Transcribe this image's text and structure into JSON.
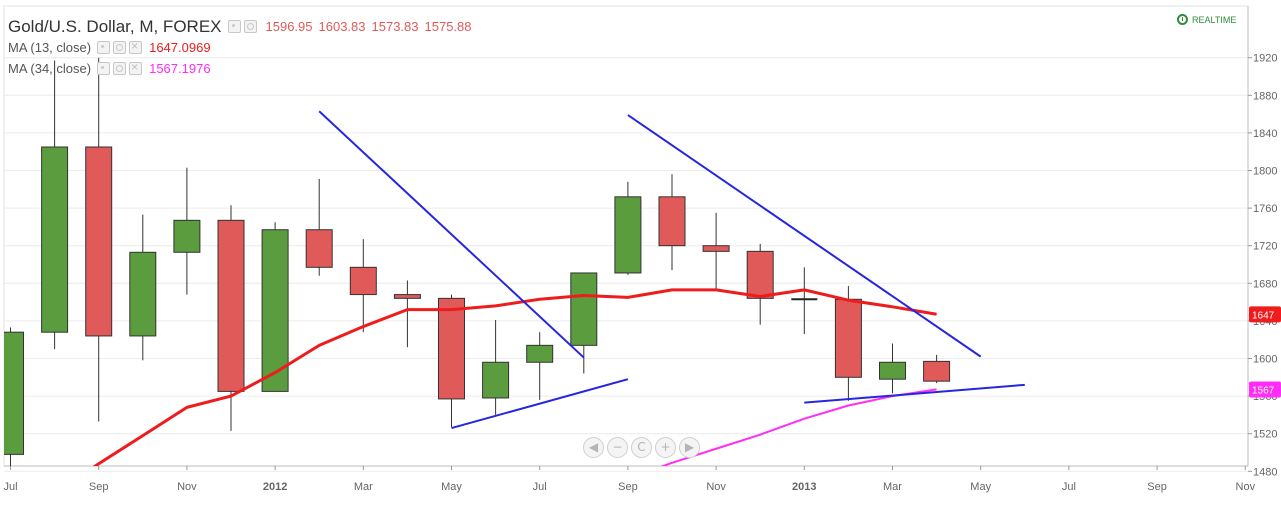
{
  "header": {
    "title": "Gold/U.S. Dollar, M, FOREX",
    "ohlc": [
      "1596.95",
      "1603.83",
      "1573.83",
      "1575.88"
    ],
    "ma13": {
      "label": "MA (13, close)",
      "value": "1647.0969"
    },
    "ma34": {
      "label": "MA (34, close)",
      "value": "1567.1976"
    },
    "realtime_label": "REALTIME"
  },
  "navigation": {
    "buttons": [
      {
        "name": "scroll-left-button",
        "glyph": "◀"
      },
      {
        "name": "zoom-out-button",
        "glyph": "−"
      },
      {
        "name": "reset-button",
        "glyph": "C"
      },
      {
        "name": "zoom-in-button",
        "glyph": "+"
      },
      {
        "name": "scroll-right-button",
        "glyph": "▶"
      }
    ]
  },
  "colors": {
    "up": "#5b9c3e",
    "down": "#e05a5a",
    "ma13": "#ee1c1c",
    "ma34": "#ff2df5",
    "trendline": "#2626e0",
    "axis_text": "#666666",
    "grid": "#ececec"
  },
  "chart_data": {
    "type": "candlestick",
    "symbol": "Gold/U.S. Dollar, M, FOREX",
    "ylim": [
      1450,
      1930
    ],
    "y_ticks": [
      1480,
      1520,
      1560,
      1600,
      1640,
      1680,
      1720,
      1760,
      1800,
      1840,
      1880,
      1920
    ],
    "x_ticks": [
      "Jul",
      "Sep",
      "Nov",
      "2012",
      "Mar",
      "May",
      "Jul",
      "Sep",
      "Nov",
      "2013",
      "Mar",
      "May",
      "Jul",
      "Sep",
      "Nov"
    ],
    "candles": [
      {
        "date": "2011-07",
        "open": 1498,
        "high": 1633,
        "low": 1478,
        "close": 1628
      },
      {
        "date": "2011-08",
        "open": 1628,
        "high": 1917,
        "low": 1610,
        "close": 1825
      },
      {
        "date": "2011-09",
        "open": 1825,
        "high": 1920,
        "low": 1533,
        "close": 1624
      },
      {
        "date": "2011-10",
        "open": 1624,
        "high": 1753,
        "low": 1598,
        "close": 1713
      },
      {
        "date": "2011-11",
        "open": 1713,
        "high": 1803,
        "low": 1668,
        "close": 1747
      },
      {
        "date": "2011-12",
        "open": 1747,
        "high": 1763,
        "low": 1523,
        "close": 1565
      },
      {
        "date": "2012-01",
        "open": 1565,
        "high": 1745,
        "low": 1565,
        "close": 1737
      },
      {
        "date": "2012-02",
        "open": 1737,
        "high": 1791,
        "low": 1688,
        "close": 1697
      },
      {
        "date": "2012-03",
        "open": 1697,
        "high": 1727,
        "low": 1628,
        "close": 1668
      },
      {
        "date": "2012-04",
        "open": 1668,
        "high": 1683,
        "low": 1612,
        "close": 1664
      },
      {
        "date": "2012-05",
        "open": 1664,
        "high": 1668,
        "low": 1527,
        "close": 1557
      },
      {
        "date": "2012-06",
        "open": 1558,
        "high": 1641,
        "low": 1540,
        "close": 1596
      },
      {
        "date": "2012-07",
        "open": 1596,
        "high": 1628,
        "low": 1556,
        "close": 1614
      },
      {
        "date": "2012-08",
        "open": 1614,
        "high": 1691,
        "low": 1584,
        "close": 1691
      },
      {
        "date": "2012-09",
        "open": 1691,
        "high": 1788,
        "low": 1689,
        "close": 1772
      },
      {
        "date": "2012-10",
        "open": 1772,
        "high": 1796,
        "low": 1694,
        "close": 1720
      },
      {
        "date": "2012-11",
        "open": 1720,
        "high": 1755,
        "low": 1673,
        "close": 1714
      },
      {
        "date": "2012-12",
        "open": 1714,
        "high": 1722,
        "low": 1636,
        "close": 1664
      },
      {
        "date": "2013-01",
        "open": 1663,
        "high": 1697,
        "low": 1626,
        "close": 1663
      },
      {
        "date": "2013-02",
        "open": 1663,
        "high": 1677,
        "low": 1555,
        "close": 1580
      },
      {
        "date": "2013-03",
        "open": 1578,
        "high": 1616,
        "low": 1563,
        "close": 1596
      },
      {
        "date": "2013-04",
        "open": 1596.95,
        "high": 1603.83,
        "low": 1573.83,
        "close": 1575.88
      }
    ],
    "series": [
      {
        "name": "MA (13, close)",
        "x": [
          "2011-08",
          "2011-09",
          "2011-10",
          "2011-11",
          "2011-12",
          "2012-01",
          "2012-02",
          "2012-03",
          "2012-04",
          "2012-05",
          "2012-06",
          "2012-07",
          "2012-08",
          "2012-09",
          "2012-10",
          "2012-11",
          "2012-12",
          "2013-01",
          "2013-02",
          "2013-03",
          "2013-04"
        ],
        "values": [
          1457,
          1488,
          1518,
          1548,
          1560,
          1585,
          1614,
          1634,
          1652,
          1652,
          1656,
          1663,
          1667,
          1665,
          1673,
          1673,
          1666,
          1673,
          1662,
          1655,
          1647.0969
        ]
      },
      {
        "name": "MA (34, close)",
        "x": [
          "2012-08",
          "2012-09",
          "2012-10",
          "2012-11",
          "2012-12",
          "2013-01",
          "2013-02",
          "2013-03",
          "2013-04"
        ],
        "values": [
          1453,
          1472,
          1489,
          1504,
          1519,
          1536,
          1550,
          1560,
          1567.1976
        ]
      }
    ],
    "trendlines": [
      {
        "x": [
          "2012-02",
          "2012-08"
        ],
        "y": [
          1863,
          1601
        ]
      },
      {
        "x": [
          "2012-05",
          "2012-09"
        ],
        "y": [
          1526,
          1578
        ]
      },
      {
        "x": [
          "2012-09",
          "2013-05"
        ],
        "y": [
          1859,
          1602
        ]
      },
      {
        "x": [
          "2013-01",
          "2013-06"
        ],
        "y": [
          1553,
          1572
        ]
      }
    ],
    "price_badges": [
      {
        "value": "1647",
        "series": "MA (13, close)"
      },
      {
        "value": "1567",
        "series": "MA (34, close)"
      }
    ],
    "grid": true
  }
}
